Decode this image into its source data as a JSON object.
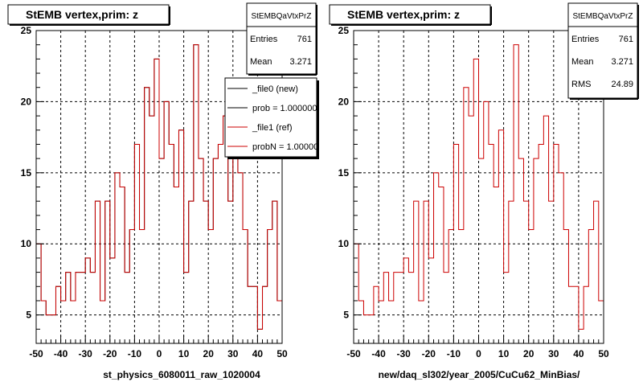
{
  "chart_data": [
    {
      "type": "histogram",
      "title": "StEMB  vertex,prim: z",
      "xlabel": "st_physics_6080011_raw_1020004",
      "ylabel": "",
      "xlim": [
        -50,
        50
      ],
      "ylim": [
        3,
        25
      ],
      "xticks": [
        -50,
        -40,
        -30,
        -20,
        -10,
        0,
        10,
        20,
        30,
        40,
        50
      ],
      "yticks": [
        5,
        10,
        15,
        20,
        25
      ],
      "grid": true,
      "bin_width": 2,
      "x_start": -50,
      "series": [
        {
          "name": "_file0 (new)",
          "color": "#000000",
          "values": [
            10,
            6,
            5,
            5,
            7,
            6,
            8,
            6,
            8,
            8,
            9,
            8,
            13,
            6,
            13,
            9,
            15,
            14,
            8,
            11,
            17,
            11,
            21,
            19,
            23,
            16,
            20,
            17,
            14,
            18,
            8,
            13,
            24,
            16,
            13,
            11,
            16,
            17,
            19,
            13,
            17,
            15,
            11,
            7,
            7,
            4,
            7,
            11,
            13,
            6
          ]
        },
        {
          "name": "_file1 (ref)",
          "color": "#cc0000",
          "values": [
            10,
            6,
            5,
            5,
            7,
            6,
            8,
            6,
            8,
            8,
            9,
            8,
            13,
            6,
            13,
            9,
            15,
            14,
            8,
            11,
            17,
            11,
            21,
            19,
            23,
            16,
            20,
            17,
            14,
            18,
            8,
            13,
            24,
            16,
            13,
            11,
            16,
            17,
            19,
            13,
            17,
            15,
            11,
            7,
            7,
            4,
            7,
            11,
            13,
            6
          ]
        }
      ],
      "stats": {
        "name": "StEMBQaVtxPrZ",
        "rows": [
          {
            "label": "Entries",
            "value": "761"
          },
          {
            "label": "Mean",
            "value": "3.271"
          }
        ]
      },
      "legend": {
        "placement": "top-right",
        "entries": [
          {
            "label": "_file0 (new)",
            "color": "#000000"
          },
          {
            "label": "prob = 1.000000",
            "color": "#000000"
          },
          {
            "label": "_file1 (ref)",
            "color": "#cc0000"
          },
          {
            "label": "probN = 1.000000",
            "color": "#cc0000"
          }
        ]
      }
    },
    {
      "type": "histogram",
      "title": "StEMB  vertex,prim: z",
      "xlabel": "new/daq_sl302/year_2005/CuCu62_MinBias/",
      "ylabel": "",
      "xlim": [
        -50,
        50
      ],
      "ylim": [
        3,
        25
      ],
      "xticks": [
        -50,
        -40,
        -30,
        -20,
        -10,
        0,
        10,
        20,
        30,
        40,
        50
      ],
      "yticks": [
        5,
        10,
        15,
        20,
        25
      ],
      "grid": true,
      "bin_width": 2,
      "x_start": -50,
      "series": [
        {
          "name": "",
          "color": "#cc0000",
          "values": [
            10,
            6,
            5,
            5,
            7,
            6,
            8,
            6,
            8,
            8,
            9,
            8,
            13,
            6,
            13,
            9,
            15,
            14,
            8,
            11,
            17,
            11,
            21,
            19,
            23,
            16,
            20,
            17,
            14,
            18,
            8,
            13,
            24,
            16,
            13,
            11,
            16,
            17,
            19,
            13,
            17,
            15,
            11,
            7,
            7,
            4,
            7,
            11,
            13,
            6
          ]
        }
      ],
      "stats": {
        "name": "StEMBQaVtxPrZ",
        "rows": [
          {
            "label": "Entries",
            "value": "761"
          },
          {
            "label": "Mean",
            "value": "3.271"
          },
          {
            "label": "RMS",
            "value": "24.89"
          }
        ]
      }
    }
  ]
}
